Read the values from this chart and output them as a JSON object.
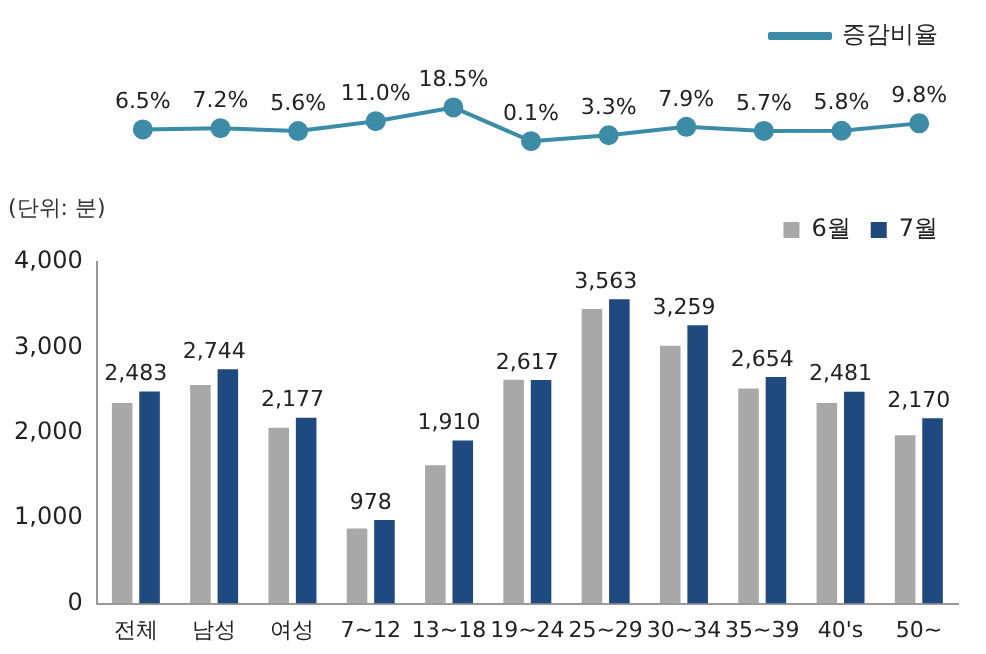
{
  "chart_data": [
    {
      "type": "line",
      "categories": [
        null,
        null,
        null,
        null,
        null,
        null,
        null,
        null,
        null,
        null,
        null
      ],
      "grid": false,
      "legend": "top right",
      "marker": "circle",
      "line_style": "solid",
      "series": [
        {
          "name": "증감비율",
          "color": "#3c8ca8",
          "values": [
            6.5,
            7.2,
            5.6,
            11.0,
            18.5,
            0.1,
            3.3,
            7.9,
            5.7,
            5.8,
            9.8
          ],
          "value_labels": [
            "6.5%",
            "7.2%",
            "5.6%",
            "11.0%",
            "18.5%",
            "0.1%",
            "3.3%",
            "7.9%",
            "5.7%",
            "5.8%",
            "9.8%"
          ]
        }
      ]
    },
    {
      "type": "bar",
      "ylabel": "(단위: 분)",
      "categories": [
        "전체",
        "남성",
        "여성",
        "7~12",
        "13~18",
        "19~24",
        "25~29",
        "30~34",
        "35~39",
        "40's",
        "50~"
      ],
      "ylim": [
        0,
        4000
      ],
      "yticks": [
        {
          "value": 0,
          "label": "0"
        },
        {
          "value": 1000,
          "label": "1,000"
        },
        {
          "value": 2000,
          "label": "2,000"
        },
        {
          "value": 3000,
          "label": "3,000"
        },
        {
          "value": 4000,
          "label": "4,000"
        }
      ],
      "grid": false,
      "legend": "top right",
      "series": [
        {
          "name": "6월",
          "color": "#a8a8a8",
          "values": [
            2350,
            2560,
            2060,
            880,
            1620,
            2620,
            3450,
            3020,
            2520,
            2350,
            1970
          ]
        },
        {
          "name": "7월",
          "color": "#1f4a80",
          "values": [
            2483,
            2744,
            2177,
            978,
            1910,
            2617,
            3563,
            3259,
            2654,
            2481,
            2170
          ],
          "value_labels": [
            "2,483",
            "2,744",
            "2,177",
            "978",
            "1,910",
            "2,617",
            "3,563",
            "3,259",
            "2,654",
            "2,481",
            "2,170"
          ]
        }
      ]
    }
  ]
}
